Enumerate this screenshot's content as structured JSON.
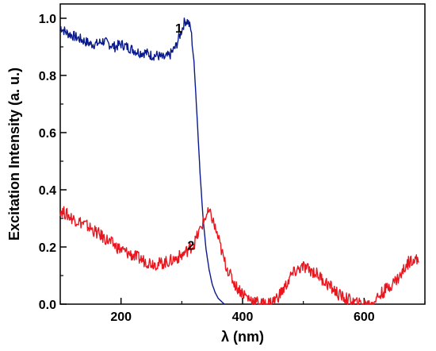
{
  "chart_data": {
    "type": "line",
    "title": "",
    "xlabel": "λ (nm)",
    "ylabel": "Excitation Intensity (a. u.)",
    "xlim": [
      100,
      700
    ],
    "ylim": [
      0,
      1.05
    ],
    "x_ticks": [
      200,
      400,
      600
    ],
    "x_tick_labels": [
      "200",
      "400",
      "600"
    ],
    "y_ticks": [
      0.0,
      0.2,
      0.4,
      0.6,
      0.8,
      1.0
    ],
    "y_tick_labels": [
      "0.0",
      "0.2",
      "0.4",
      "0.6",
      "0.8",
      "1.0"
    ],
    "grid": false,
    "legend": "none",
    "series": [
      {
        "label": "1",
        "color": "#0a1a8c",
        "x": [
          100,
          110,
          120,
          130,
          140,
          150,
          160,
          170,
          180,
          190,
          200,
          210,
          220,
          230,
          240,
          250,
          260,
          270,
          280,
          290,
          300,
          305,
          310,
          315,
          320,
          325,
          330,
          335,
          340,
          345,
          350,
          355,
          360,
          365,
          370
        ],
        "y": [
          0.97,
          0.95,
          0.94,
          0.93,
          0.92,
          0.91,
          0.91,
          0.92,
          0.91,
          0.9,
          0.91,
          0.9,
          0.89,
          0.88,
          0.88,
          0.87,
          0.87,
          0.86,
          0.87,
          0.9,
          0.96,
          0.99,
          0.99,
          0.96,
          0.85,
          0.66,
          0.46,
          0.3,
          0.19,
          0.12,
          0.07,
          0.04,
          0.02,
          0.01,
          0.0
        ]
      },
      {
        "label": "2",
        "color": "#e8161e",
        "x": [
          100,
          120,
          140,
          160,
          180,
          200,
          220,
          240,
          260,
          280,
          300,
          320,
          330,
          340,
          345,
          350,
          360,
          370,
          380,
          390,
          400,
          410,
          420,
          430,
          440,
          450,
          460,
          470,
          480,
          490,
          500,
          510,
          520,
          530,
          540,
          550,
          560,
          570,
          580,
          590,
          600,
          610,
          620,
          630,
          640,
          650,
          660,
          670,
          680,
          690
        ],
        "y": [
          0.33,
          0.3,
          0.28,
          0.25,
          0.22,
          0.19,
          0.17,
          0.15,
          0.14,
          0.15,
          0.17,
          0.21,
          0.26,
          0.31,
          0.32,
          0.3,
          0.23,
          0.15,
          0.1,
          0.06,
          0.04,
          0.02,
          0.01,
          0.0,
          0.0,
          0.01,
          0.03,
          0.06,
          0.1,
          0.12,
          0.13,
          0.12,
          0.11,
          0.09,
          0.07,
          0.05,
          0.03,
          0.02,
          0.01,
          0.0,
          0.0,
          0.0,
          0.02,
          0.04,
          0.06,
          0.08,
          0.1,
          0.14,
          0.16,
          0.15
        ]
      }
    ]
  }
}
